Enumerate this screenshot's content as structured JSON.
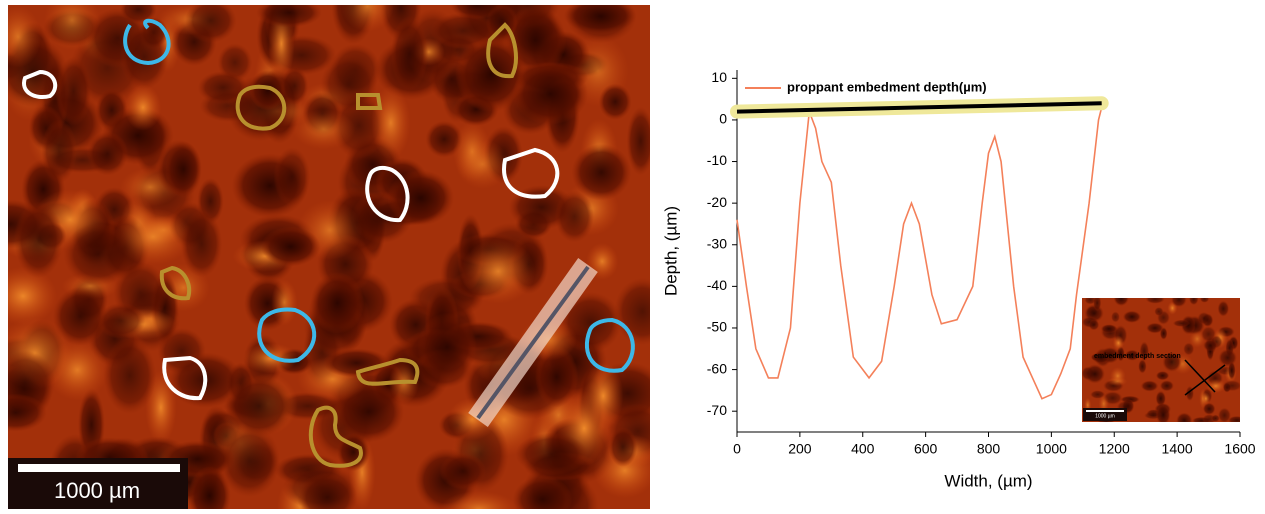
{
  "image": {
    "scale_bar": "1000 µm"
  },
  "inset": {
    "label": "embedment depth section",
    "scale_bar": "1000 µm"
  },
  "chart_data": {
    "type": "line",
    "x_label": "Width, (µm)",
    "y_label": "Depth, (µm)",
    "xlim": [
      0,
      1600
    ],
    "xticks": [
      0,
      200,
      400,
      600,
      800,
      1000,
      1200,
      1400,
      1600
    ],
    "ylim": [
      -75,
      12
    ],
    "yticks": [
      10,
      0,
      -10,
      -20,
      -30,
      -40,
      -50,
      -60,
      -70
    ],
    "legend": "upper left",
    "series": [
      {
        "name": "proppant embedment depth(µm)",
        "color": "#f4805a",
        "x": [
          0,
          30,
          60,
          100,
          130,
          170,
          200,
          230,
          250,
          270,
          300,
          330,
          370,
          420,
          460,
          500,
          530,
          555,
          580,
          620,
          650,
          700,
          750,
          780,
          800,
          820,
          840,
          880,
          910,
          940,
          970,
          1000,
          1030,
          1060,
          1080,
          1120,
          1150,
          1160
        ],
        "values": [
          -24,
          -40,
          -55,
          -62,
          -62,
          -50,
          -20,
          2,
          -2,
          -10,
          -15,
          -35,
          -57,
          -62,
          -58,
          -40,
          -25,
          -20,
          -25,
          -42,
          -49,
          -48,
          -40,
          -20,
          -8,
          -4,
          -10,
          -40,
          -57,
          -62,
          -67,
          -66,
          -61,
          -55,
          -42,
          -20,
          0,
          3
        ]
      },
      {
        "color": "#000000",
        "highlight": "#efe89a",
        "x": [
          0,
          1160
        ],
        "values": [
          2,
          4
        ]
      }
    ]
  }
}
